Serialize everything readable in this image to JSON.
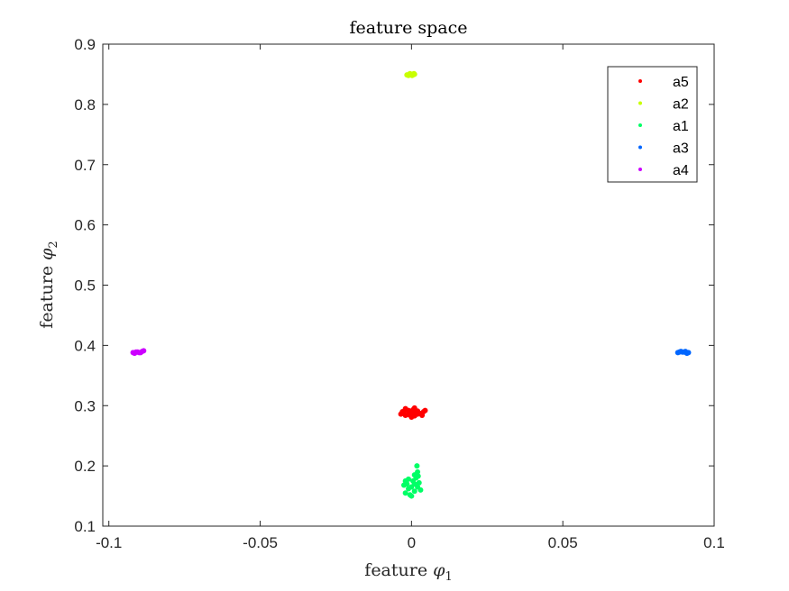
{
  "chart_data": {
    "type": "scatter",
    "title": "feature space",
    "xlabel": {
      "prefix": "feature ",
      "symbol": "φ",
      "subscript": "1"
    },
    "ylabel": {
      "prefix": "feature ",
      "symbol": "φ",
      "subscript": "2"
    },
    "xlim": [
      -0.102,
      0.1
    ],
    "ylim": [
      0.1,
      0.9
    ],
    "xticks": [
      -0.1,
      -0.05,
      0,
      0.05,
      0.1
    ],
    "xtick_labels": [
      "-0.1",
      "-0.05",
      "0",
      "0.05",
      "0.1"
    ],
    "yticks": [
      0.1,
      0.2,
      0.3,
      0.4,
      0.5,
      0.6,
      0.7,
      0.8,
      0.9
    ],
    "ytick_labels": [
      "0.1",
      "0.2",
      "0.3",
      "0.4",
      "0.5",
      "0.6",
      "0.7",
      "0.8",
      "0.9"
    ],
    "grid": false,
    "legend_position": "top-right",
    "series": [
      {
        "name": "a5",
        "color": "#ff0000",
        "points": [
          [
            -0.003,
            0.29
          ],
          [
            -0.002,
            0.284
          ],
          [
            -0.001,
            0.292
          ],
          [
            0.0,
            0.288
          ],
          [
            0.001,
            0.283
          ],
          [
            0.002,
            0.291
          ],
          [
            0.003,
            0.287
          ],
          [
            0.004,
            0.29
          ],
          [
            -0.0035,
            0.286
          ],
          [
            0.0035,
            0.284
          ],
          [
            -0.002,
            0.295
          ],
          [
            0.001,
            0.296
          ],
          [
            0.0,
            0.281
          ],
          [
            -0.001,
            0.285
          ],
          [
            0.002,
            0.286
          ],
          [
            0.0045,
            0.292
          ],
          [
            -0.0025,
            0.289
          ],
          [
            0.0005,
            0.293
          ],
          [
            -0.0005,
            0.287
          ],
          [
            0.0015,
            0.289
          ]
        ]
      },
      {
        "name": "a2",
        "color": "#c8ff00",
        "points": [
          [
            -0.001,
            0.848
          ],
          [
            0.0,
            0.85
          ],
          [
            0.0005,
            0.849
          ],
          [
            -0.0005,
            0.851
          ],
          [
            0.001,
            0.85
          ],
          [
            -0.0015,
            0.849
          ],
          [
            0.0002,
            0.848
          ],
          [
            0.0008,
            0.851
          ]
        ]
      },
      {
        "name": "a1",
        "color": "#00ff66",
        "points": [
          [
            -0.002,
            0.155
          ],
          [
            -0.001,
            0.162
          ],
          [
            0.0,
            0.15
          ],
          [
            0.001,
            0.158
          ],
          [
            0.002,
            0.165
          ],
          [
            -0.0015,
            0.17
          ],
          [
            0.0005,
            0.175
          ],
          [
            0.0015,
            0.18
          ],
          [
            0.002,
            0.19
          ],
          [
            0.001,
            0.185
          ],
          [
            -0.0025,
            0.168
          ],
          [
            0.0025,
            0.172
          ],
          [
            -0.001,
            0.178
          ],
          [
            0.0,
            0.165
          ],
          [
            0.003,
            0.16
          ],
          [
            0.0018,
            0.2
          ],
          [
            -0.0005,
            0.152
          ],
          [
            0.0022,
            0.183
          ],
          [
            -0.002,
            0.175
          ],
          [
            0.001,
            0.17
          ]
        ]
      },
      {
        "name": "a3",
        "color": "#0066ff",
        "points": [
          [
            0.088,
            0.388
          ],
          [
            0.089,
            0.39
          ],
          [
            0.09,
            0.389
          ],
          [
            0.091,
            0.387
          ],
          [
            0.0895,
            0.389
          ],
          [
            0.0905,
            0.39
          ],
          [
            0.0915,
            0.388
          ],
          [
            0.0885,
            0.389
          ]
        ]
      },
      {
        "name": "a4",
        "color": "#cc00ff",
        "points": [
          [
            -0.092,
            0.388
          ],
          [
            -0.091,
            0.389
          ],
          [
            -0.09,
            0.388
          ],
          [
            -0.089,
            0.39
          ],
          [
            -0.0885,
            0.391
          ],
          [
            -0.0905,
            0.389
          ],
          [
            -0.0915,
            0.387
          ],
          [
            -0.0895,
            0.388
          ]
        ]
      }
    ]
  }
}
